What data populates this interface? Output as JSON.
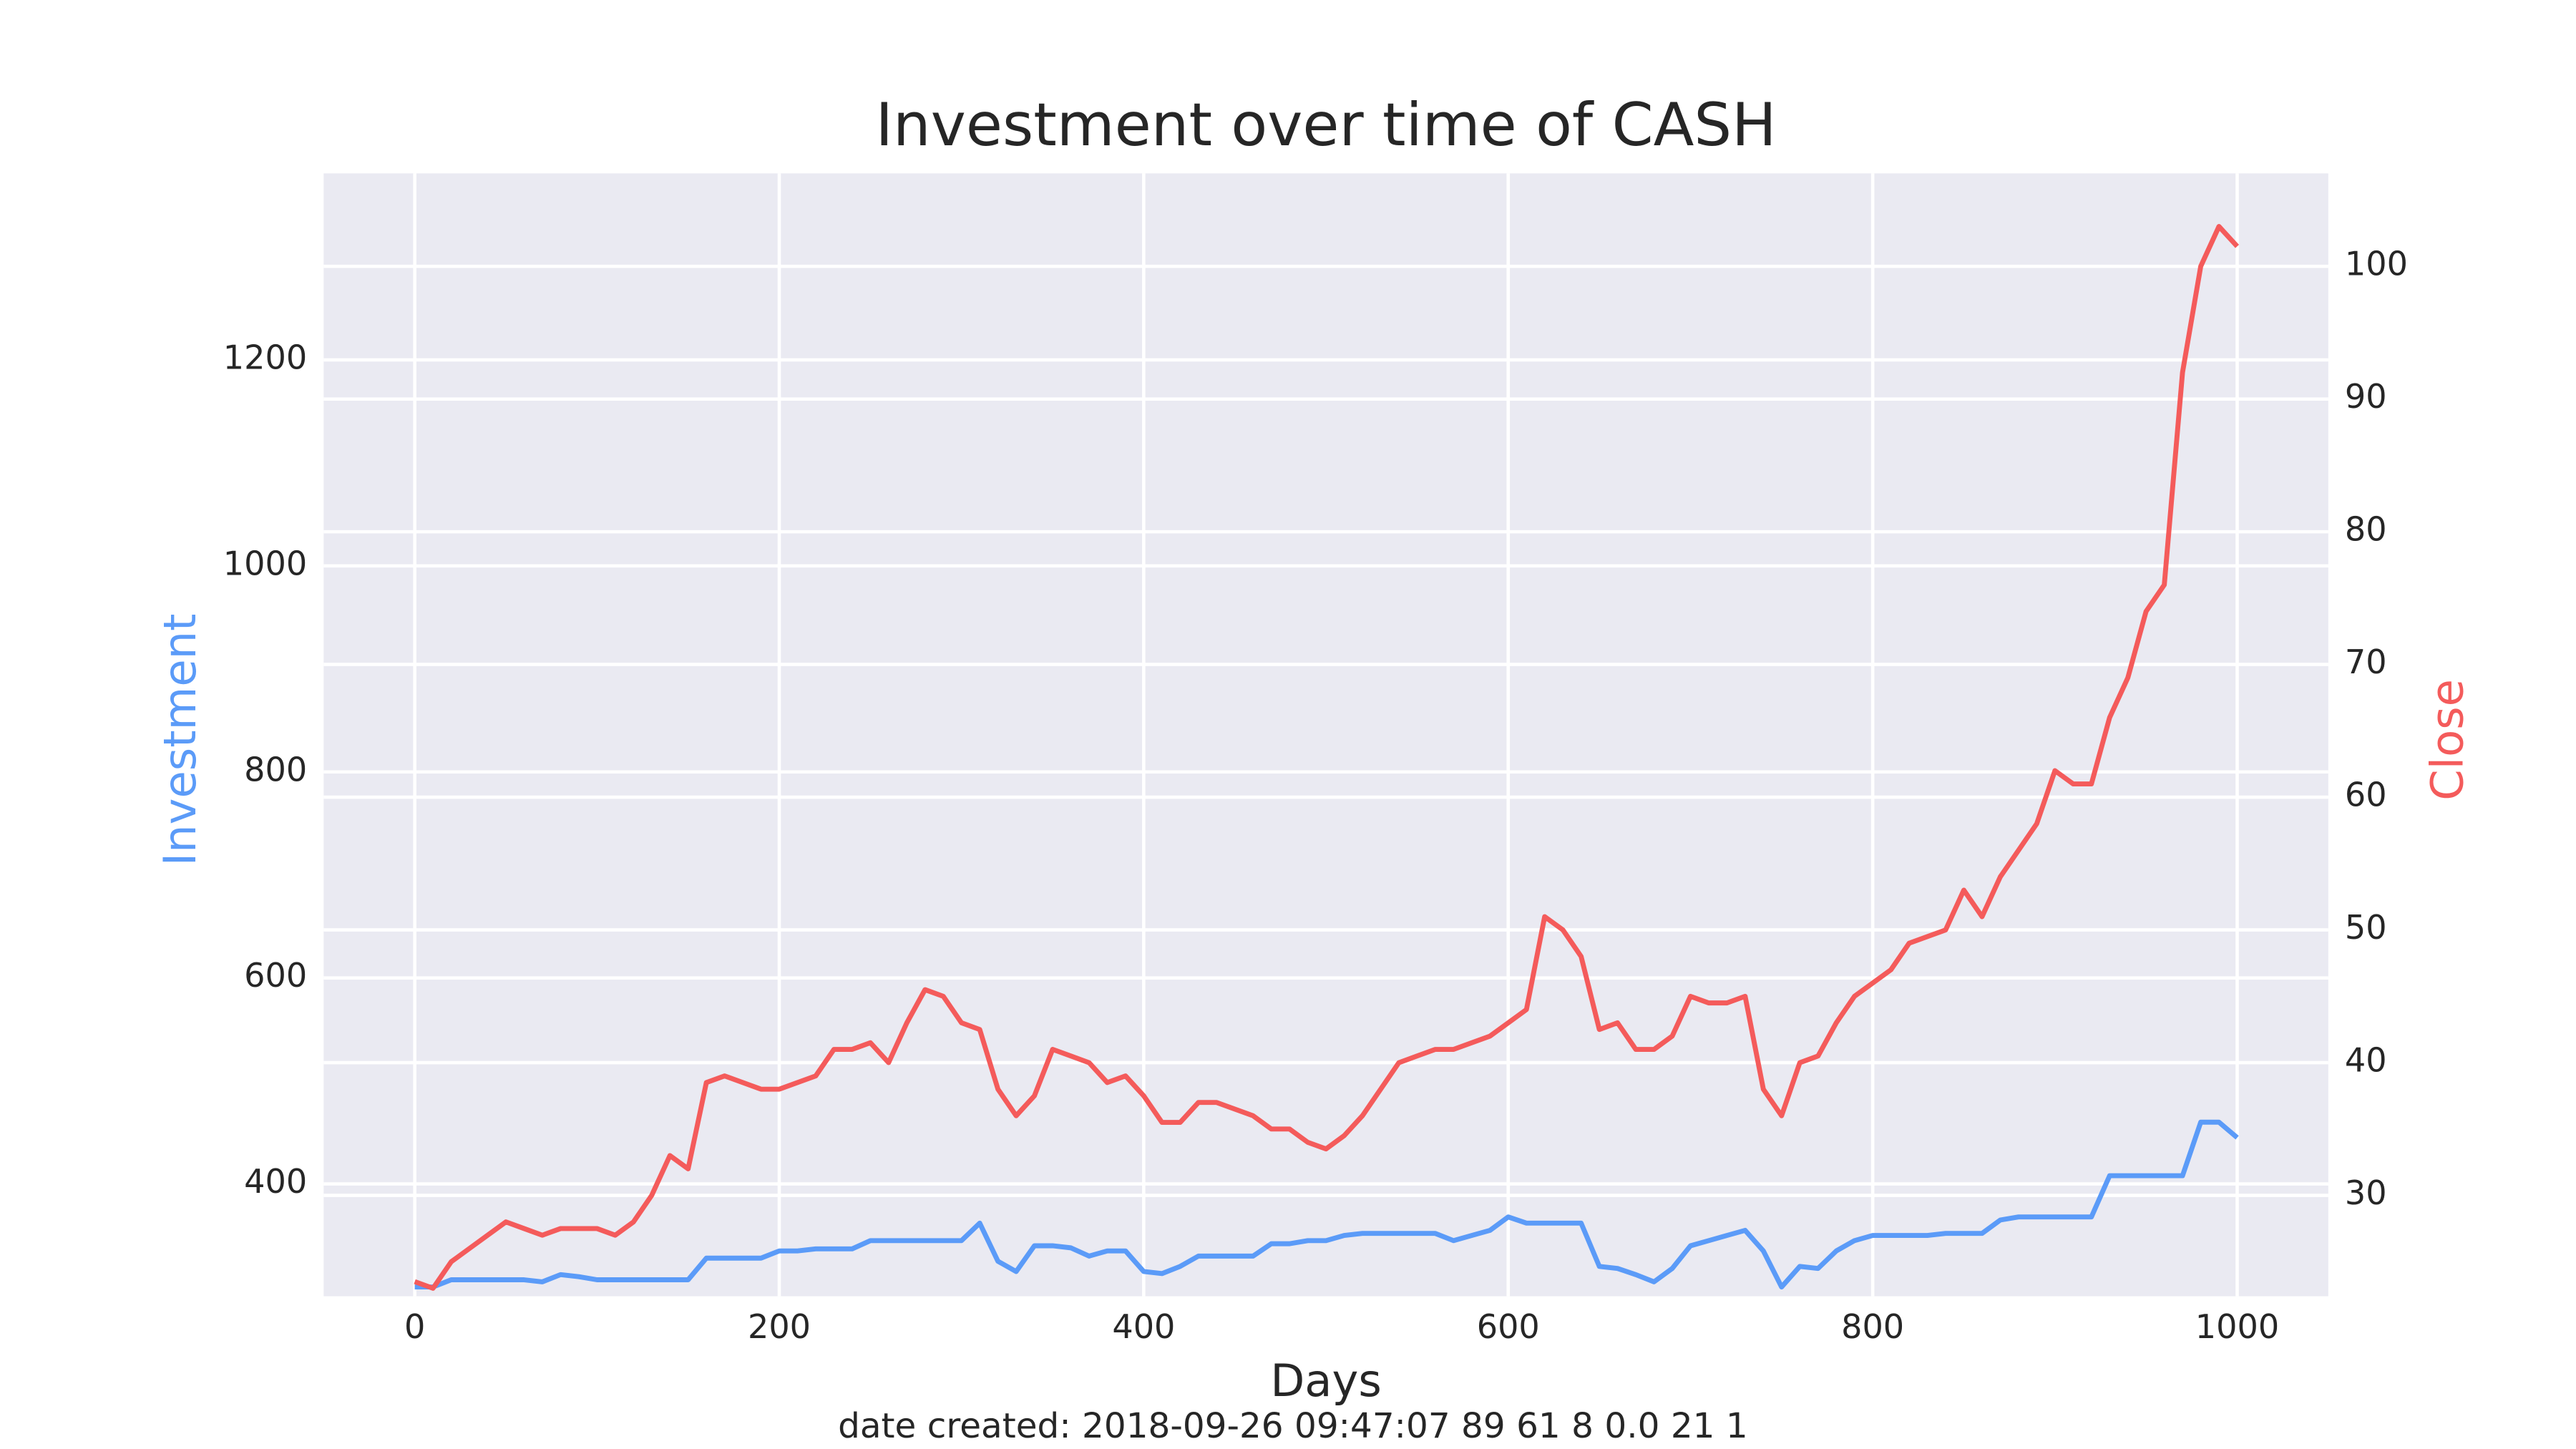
{
  "chart_data": {
    "type": "line",
    "title": "Investment over time of CASH",
    "xlabel": "Days",
    "ylabel": "Investment",
    "y2label": "Close",
    "footer": "date created: 2018-09-26 09:47:07 89 61 8 0.0 21 1",
    "x": [
      0,
      10,
      20,
      30,
      40,
      50,
      60,
      70,
      80,
      90,
      100,
      110,
      120,
      130,
      140,
      150,
      160,
      170,
      180,
      190,
      200,
      210,
      220,
      230,
      240,
      250,
      260,
      270,
      280,
      290,
      300,
      310,
      320,
      330,
      340,
      350,
      360,
      370,
      380,
      390,
      400,
      410,
      420,
      430,
      440,
      450,
      460,
      470,
      480,
      490,
      500,
      510,
      520,
      530,
      540,
      550,
      560,
      570,
      580,
      590,
      600,
      610,
      620,
      630,
      640,
      650,
      660,
      670,
      680,
      690,
      700,
      710,
      720,
      730,
      740,
      750,
      760,
      770,
      780,
      790,
      800,
      810,
      820,
      830,
      840,
      850,
      860,
      870,
      880,
      890,
      900,
      910,
      920,
      930,
      940,
      950,
      960,
      970,
      980,
      990,
      1000
    ],
    "series": [
      {
        "name": "Investment",
        "color": "#5b9bf8",
        "axis": "y",
        "values": [
          300,
          300,
          307,
          307,
          307,
          307,
          307,
          305,
          312,
          310,
          307,
          307,
          307,
          307,
          307,
          307,
          328,
          328,
          328,
          328,
          335,
          335,
          337,
          337,
          337,
          345,
          345,
          345,
          345,
          345,
          345,
          362,
          325,
          315,
          340,
          340,
          338,
          330,
          335,
          335,
          315,
          313,
          320,
          330,
          330,
          330,
          330,
          342,
          342,
          345,
          345,
          350,
          352,
          352,
          352,
          352,
          352,
          345,
          350,
          355,
          368,
          362,
          362,
          362,
          362,
          320,
          318,
          312,
          305,
          318,
          340,
          345,
          350,
          355,
          335,
          300,
          320,
          318,
          335,
          345,
          350,
          350,
          350,
          350,
          352,
          352,
          352,
          365,
          368,
          368,
          368,
          368,
          368,
          408,
          408,
          408,
          408,
          408,
          460,
          460,
          445
        ]
      },
      {
        "name": "Close",
        "color": "#f45b5b",
        "axis": "y2",
        "values": [
          23.5,
          23,
          25,
          26,
          27,
          28,
          27.5,
          27,
          27.5,
          27.5,
          27.5,
          27,
          28,
          30,
          33,
          32,
          38.5,
          39,
          38.5,
          38,
          38,
          38.5,
          39,
          41,
          41,
          41.5,
          40,
          43,
          45.5,
          45,
          43,
          42.5,
          38,
          36,
          37.5,
          41,
          40.5,
          40,
          38.5,
          39,
          37.5,
          35.5,
          35.5,
          37,
          37,
          36.5,
          36,
          35,
          35,
          34,
          33.5,
          34.5,
          36,
          38,
          40,
          40.5,
          41,
          41,
          41.5,
          42,
          43,
          44,
          51,
          50,
          48,
          42.5,
          43,
          41,
          41,
          42,
          45,
          44.5,
          44.5,
          45,
          38,
          36,
          40,
          40.5,
          43,
          45,
          46,
          47,
          49,
          49.5,
          50,
          53,
          51,
          54,
          56,
          58,
          62,
          61,
          61,
          66,
          69,
          74,
          76,
          92,
          100,
          103,
          101.5
        ]
      }
    ],
    "xlim": [
      -50,
      1050
    ],
    "ylim": [
      291,
      1381
    ],
    "y2lim": [
      22.4,
      107
    ],
    "xticks": [
      0,
      200,
      400,
      600,
      800,
      1000
    ],
    "yticks": [
      400,
      600,
      800,
      1000,
      1200
    ],
    "y2ticks": [
      30,
      40,
      50,
      60,
      70,
      80,
      90,
      100
    ],
    "grid": true
  }
}
